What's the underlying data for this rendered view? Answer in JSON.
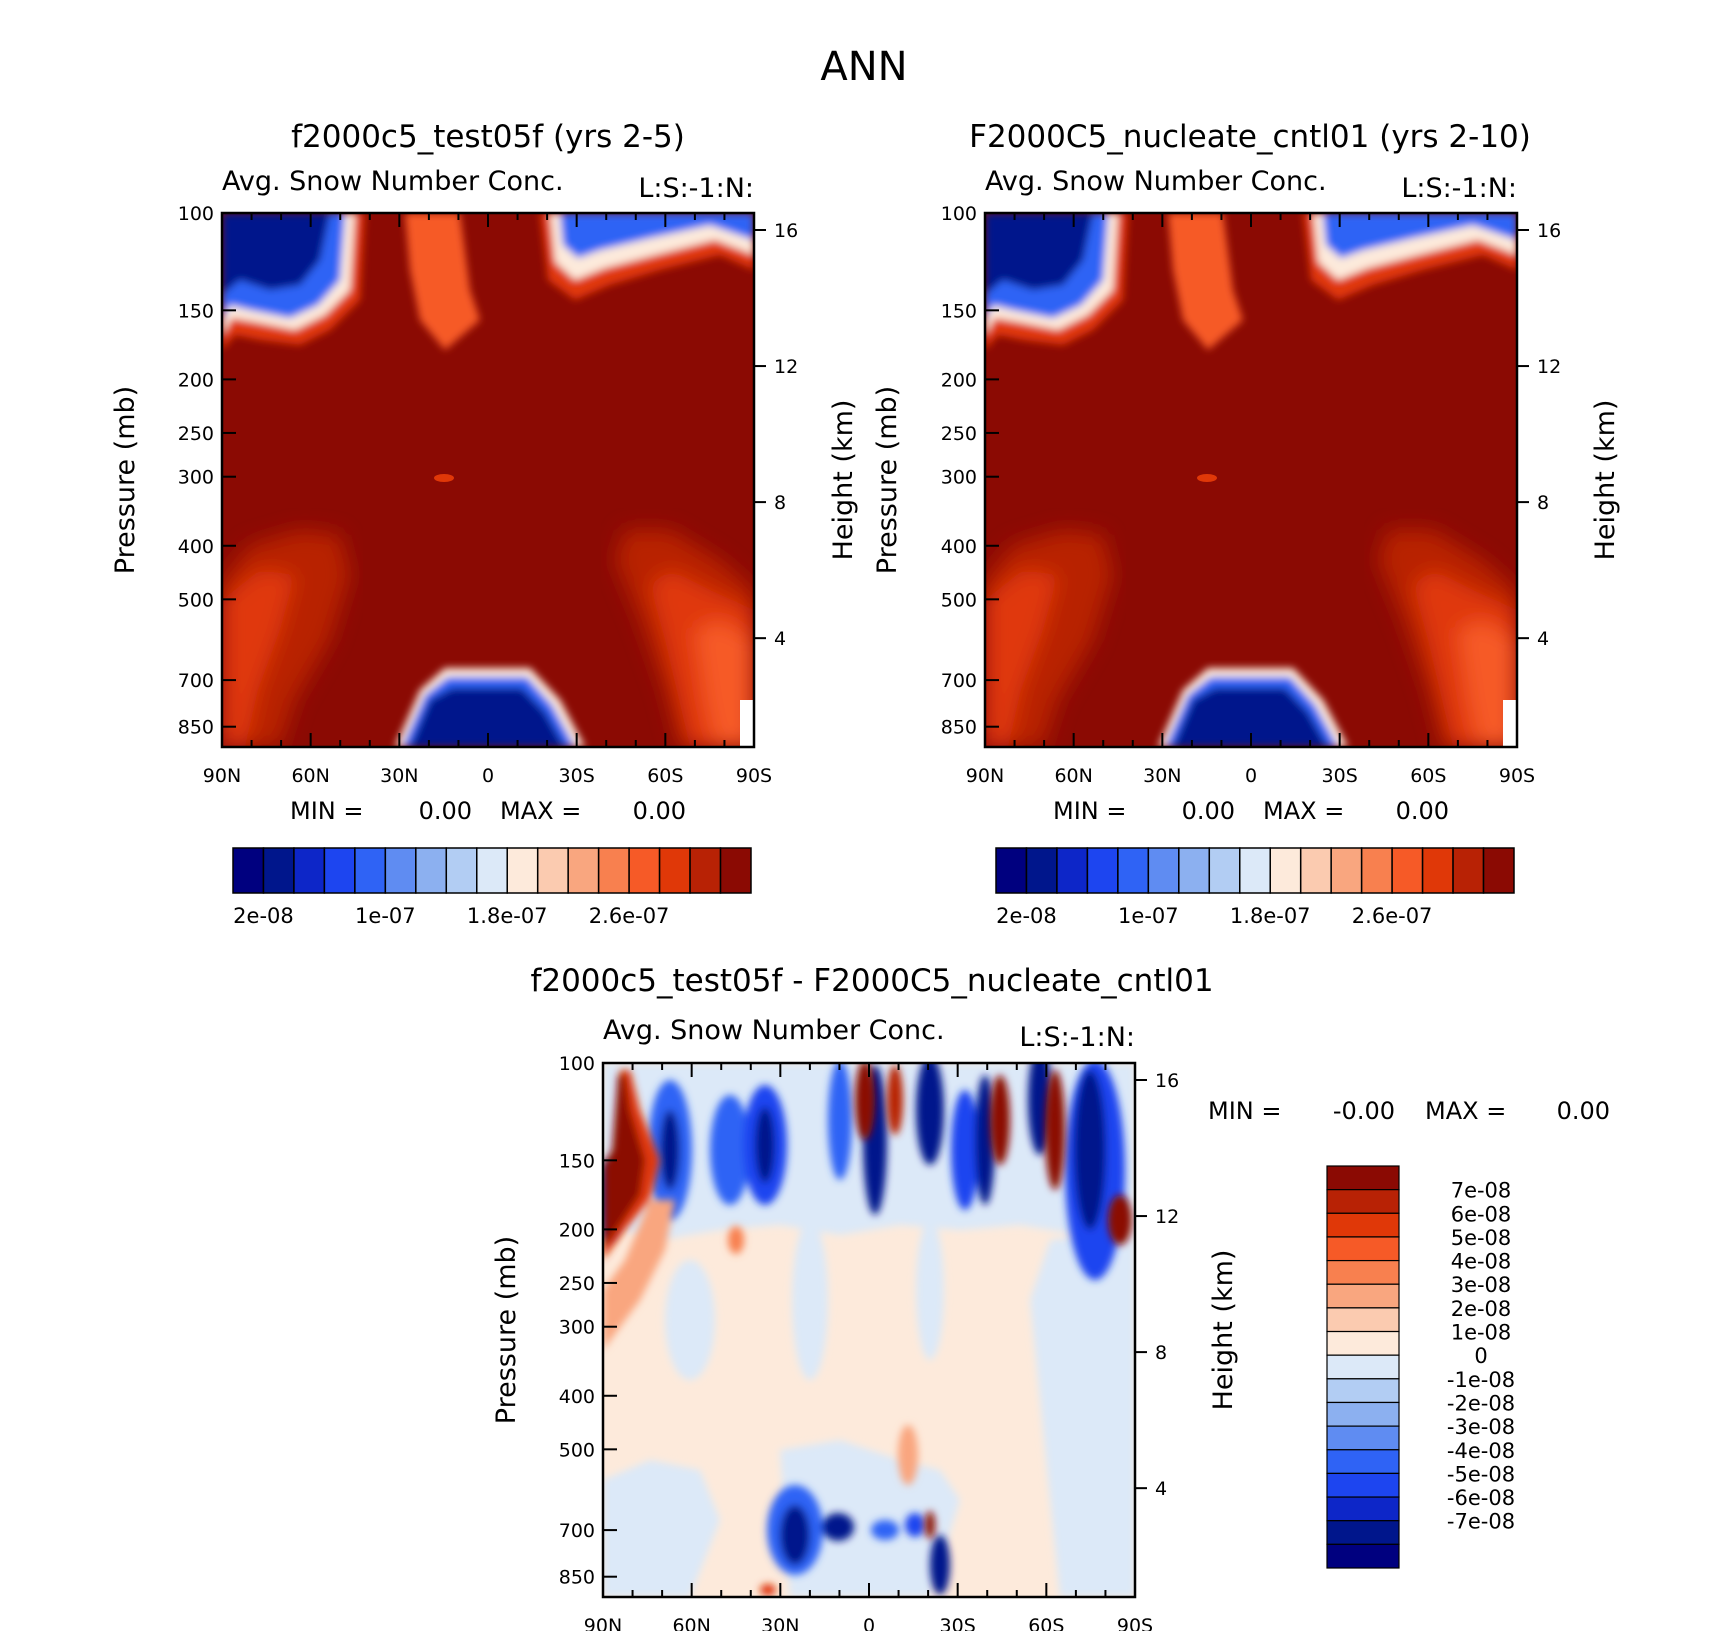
{
  "figure_title": "ANN",
  "palette": {
    "positive": [
      "#fdeadb",
      "#fbcbb0",
      "#f9a67f",
      "#f8804f",
      "#f65a27",
      "#e03808",
      "#b82205",
      "#8b0a03"
    ],
    "negative": [
      "#dce9f8",
      "#b2cdf3",
      "#8cb0f0",
      "#5f8cf2",
      "#2f63f5",
      "#1d45f0",
      "#0d26c8",
      "#00168c",
      "#00007f"
    ]
  },
  "chart_data": [
    {
      "id": "top-left",
      "type": "heatmap",
      "title": "f2000c5_test05f (yrs 2-5)",
      "subtitle": "Avg. Snow Number Conc.",
      "corner_label": "L:S:-1:N:",
      "ylabel": "Pressure (mb)",
      "y2label": "Height (km)",
      "x_ticks": [
        "90N",
        "60N",
        "30N",
        "0",
        "30S",
        "60S",
        "90S"
      ],
      "y_ticks": [
        "100",
        "150",
        "200",
        "250",
        "300",
        "400",
        "500",
        "700",
        "850"
      ],
      "y2_ticks": [
        "16",
        "12",
        "8",
        "4"
      ],
      "min_label": "MIN =",
      "min_value": "0.00",
      "max_label": "MAX =",
      "max_value": "0.00",
      "colorbar_labels": [
        "2e-08",
        "1e-07",
        "1.8e-07",
        "2.6e-07"
      ],
      "fields": {
        "background_level": "highest",
        "upper_left_low": {
          "lat_range": [
            "90N",
            "35N"
          ],
          "p_range": [
            100,
            160
          ]
        },
        "upper_right_low": {
          "lat_range": [
            "25S",
            "90S"
          ],
          "p_range": [
            100,
            140
          ]
        },
        "equatorial_lower_low": {
          "lat_range": [
            "30N",
            "30S"
          ],
          "p_range": [
            700,
            925
          ]
        }
      }
    },
    {
      "id": "top-right",
      "type": "heatmap",
      "title": "F2000C5_nucleate_cntl01 (yrs 2-10)",
      "subtitle": "Avg. Snow Number Conc.",
      "corner_label": "L:S:-1:N:",
      "ylabel": "Pressure (mb)",
      "y2label": "Height (km)",
      "x_ticks": [
        "90N",
        "60N",
        "30N",
        "0",
        "30S",
        "60S",
        "90S"
      ],
      "y_ticks": [
        "100",
        "150",
        "200",
        "250",
        "300",
        "400",
        "500",
        "700",
        "850"
      ],
      "y2_ticks": [
        "16",
        "12",
        "8",
        "4"
      ],
      "min_label": "MIN =",
      "min_value": "0.00",
      "max_label": "MAX =",
      "max_value": "0.00",
      "colorbar_labels": [
        "2e-08",
        "1e-07",
        "1.8e-07",
        "2.6e-07"
      ],
      "fields": {
        "background_level": "highest",
        "upper_left_low": {
          "lat_range": [
            "90N",
            "35N"
          ],
          "p_range": [
            100,
            160
          ]
        },
        "upper_right_low": {
          "lat_range": [
            "25S",
            "90S"
          ],
          "p_range": [
            100,
            140
          ]
        },
        "equatorial_lower_low": {
          "lat_range": [
            "30N",
            "30S"
          ],
          "p_range": [
            700,
            925
          ]
        }
      }
    },
    {
      "id": "bottom-diff",
      "type": "heatmap",
      "title": "f2000c5_test05f - F2000C5_nucleate_cntl01",
      "subtitle": "Avg. Snow Number Conc.",
      "corner_label": "L:S:-1:N:",
      "ylabel": "Pressure (mb)",
      "y2label": "Height (km)",
      "x_ticks": [
        "90N",
        "60N",
        "30N",
        "0",
        "30S",
        "60S",
        "90S"
      ],
      "y_ticks": [
        "100",
        "150",
        "200",
        "250",
        "300",
        "400",
        "500",
        "700",
        "850"
      ],
      "y2_ticks": [
        "16",
        "12",
        "8",
        "4"
      ],
      "min_label": "MIN =",
      "min_value": "-0.00",
      "max_label": "MAX =",
      "max_value": "0.00",
      "colorbar_labels": [
        "7e-08",
        "6e-08",
        "5e-08",
        "4e-08",
        "3e-08",
        "2e-08",
        "1e-08",
        "0",
        "-1e-08",
        "-2e-08",
        "-3e-08",
        "-4e-08",
        "-5e-08",
        "-6e-08",
        "-7e-08"
      ]
    }
  ]
}
